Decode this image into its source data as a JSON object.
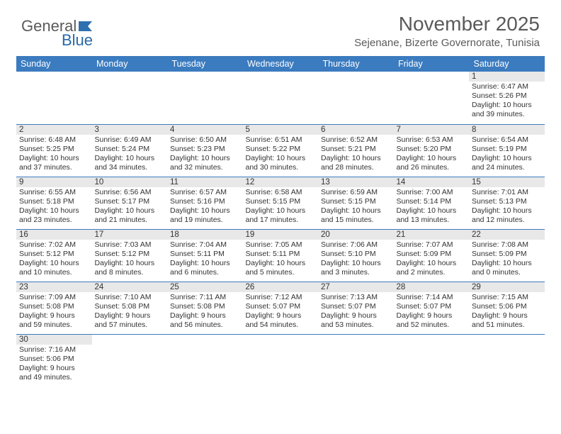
{
  "logo": {
    "text1": "General",
    "text2": "Blue"
  },
  "title": "November 2025",
  "location": "Sejenane, Bizerte Governorate, Tunisia",
  "colors": {
    "header_bg": "#3b7bbf",
    "header_fg": "#ffffff",
    "daynum_bg": "#e8e8e8",
    "rule": "#3b7bbf",
    "logo_gray": "#5a5a5a",
    "logo_blue": "#2868a8"
  },
  "day_headers": [
    "Sunday",
    "Monday",
    "Tuesday",
    "Wednesday",
    "Thursday",
    "Friday",
    "Saturday"
  ],
  "weeks": [
    [
      null,
      null,
      null,
      null,
      null,
      null,
      {
        "n": "1",
        "sr": "Sunrise: 6:47 AM",
        "ss": "Sunset: 5:26 PM",
        "dl1": "Daylight: 10 hours",
        "dl2": "and 39 minutes."
      }
    ],
    [
      {
        "n": "2",
        "sr": "Sunrise: 6:48 AM",
        "ss": "Sunset: 5:25 PM",
        "dl1": "Daylight: 10 hours",
        "dl2": "and 37 minutes."
      },
      {
        "n": "3",
        "sr": "Sunrise: 6:49 AM",
        "ss": "Sunset: 5:24 PM",
        "dl1": "Daylight: 10 hours",
        "dl2": "and 34 minutes."
      },
      {
        "n": "4",
        "sr": "Sunrise: 6:50 AM",
        "ss": "Sunset: 5:23 PM",
        "dl1": "Daylight: 10 hours",
        "dl2": "and 32 minutes."
      },
      {
        "n": "5",
        "sr": "Sunrise: 6:51 AM",
        "ss": "Sunset: 5:22 PM",
        "dl1": "Daylight: 10 hours",
        "dl2": "and 30 minutes."
      },
      {
        "n": "6",
        "sr": "Sunrise: 6:52 AM",
        "ss": "Sunset: 5:21 PM",
        "dl1": "Daylight: 10 hours",
        "dl2": "and 28 minutes."
      },
      {
        "n": "7",
        "sr": "Sunrise: 6:53 AM",
        "ss": "Sunset: 5:20 PM",
        "dl1": "Daylight: 10 hours",
        "dl2": "and 26 minutes."
      },
      {
        "n": "8",
        "sr": "Sunrise: 6:54 AM",
        "ss": "Sunset: 5:19 PM",
        "dl1": "Daylight: 10 hours",
        "dl2": "and 24 minutes."
      }
    ],
    [
      {
        "n": "9",
        "sr": "Sunrise: 6:55 AM",
        "ss": "Sunset: 5:18 PM",
        "dl1": "Daylight: 10 hours",
        "dl2": "and 23 minutes."
      },
      {
        "n": "10",
        "sr": "Sunrise: 6:56 AM",
        "ss": "Sunset: 5:17 PM",
        "dl1": "Daylight: 10 hours",
        "dl2": "and 21 minutes."
      },
      {
        "n": "11",
        "sr": "Sunrise: 6:57 AM",
        "ss": "Sunset: 5:16 PM",
        "dl1": "Daylight: 10 hours",
        "dl2": "and 19 minutes."
      },
      {
        "n": "12",
        "sr": "Sunrise: 6:58 AM",
        "ss": "Sunset: 5:15 PM",
        "dl1": "Daylight: 10 hours",
        "dl2": "and 17 minutes."
      },
      {
        "n": "13",
        "sr": "Sunrise: 6:59 AM",
        "ss": "Sunset: 5:15 PM",
        "dl1": "Daylight: 10 hours",
        "dl2": "and 15 minutes."
      },
      {
        "n": "14",
        "sr": "Sunrise: 7:00 AM",
        "ss": "Sunset: 5:14 PM",
        "dl1": "Daylight: 10 hours",
        "dl2": "and 13 minutes."
      },
      {
        "n": "15",
        "sr": "Sunrise: 7:01 AM",
        "ss": "Sunset: 5:13 PM",
        "dl1": "Daylight: 10 hours",
        "dl2": "and 12 minutes."
      }
    ],
    [
      {
        "n": "16",
        "sr": "Sunrise: 7:02 AM",
        "ss": "Sunset: 5:12 PM",
        "dl1": "Daylight: 10 hours",
        "dl2": "and 10 minutes."
      },
      {
        "n": "17",
        "sr": "Sunrise: 7:03 AM",
        "ss": "Sunset: 5:12 PM",
        "dl1": "Daylight: 10 hours",
        "dl2": "and 8 minutes."
      },
      {
        "n": "18",
        "sr": "Sunrise: 7:04 AM",
        "ss": "Sunset: 5:11 PM",
        "dl1": "Daylight: 10 hours",
        "dl2": "and 6 minutes."
      },
      {
        "n": "19",
        "sr": "Sunrise: 7:05 AM",
        "ss": "Sunset: 5:11 PM",
        "dl1": "Daylight: 10 hours",
        "dl2": "and 5 minutes."
      },
      {
        "n": "20",
        "sr": "Sunrise: 7:06 AM",
        "ss": "Sunset: 5:10 PM",
        "dl1": "Daylight: 10 hours",
        "dl2": "and 3 minutes."
      },
      {
        "n": "21",
        "sr": "Sunrise: 7:07 AM",
        "ss": "Sunset: 5:09 PM",
        "dl1": "Daylight: 10 hours",
        "dl2": "and 2 minutes."
      },
      {
        "n": "22",
        "sr": "Sunrise: 7:08 AM",
        "ss": "Sunset: 5:09 PM",
        "dl1": "Daylight: 10 hours",
        "dl2": "and 0 minutes."
      }
    ],
    [
      {
        "n": "23",
        "sr": "Sunrise: 7:09 AM",
        "ss": "Sunset: 5:08 PM",
        "dl1": "Daylight: 9 hours",
        "dl2": "and 59 minutes."
      },
      {
        "n": "24",
        "sr": "Sunrise: 7:10 AM",
        "ss": "Sunset: 5:08 PM",
        "dl1": "Daylight: 9 hours",
        "dl2": "and 57 minutes."
      },
      {
        "n": "25",
        "sr": "Sunrise: 7:11 AM",
        "ss": "Sunset: 5:08 PM",
        "dl1": "Daylight: 9 hours",
        "dl2": "and 56 minutes."
      },
      {
        "n": "26",
        "sr": "Sunrise: 7:12 AM",
        "ss": "Sunset: 5:07 PM",
        "dl1": "Daylight: 9 hours",
        "dl2": "and 54 minutes."
      },
      {
        "n": "27",
        "sr": "Sunrise: 7:13 AM",
        "ss": "Sunset: 5:07 PM",
        "dl1": "Daylight: 9 hours",
        "dl2": "and 53 minutes."
      },
      {
        "n": "28",
        "sr": "Sunrise: 7:14 AM",
        "ss": "Sunset: 5:07 PM",
        "dl1": "Daylight: 9 hours",
        "dl2": "and 52 minutes."
      },
      {
        "n": "29",
        "sr": "Sunrise: 7:15 AM",
        "ss": "Sunset: 5:06 PM",
        "dl1": "Daylight: 9 hours",
        "dl2": "and 51 minutes."
      }
    ],
    [
      {
        "n": "30",
        "sr": "Sunrise: 7:16 AM",
        "ss": "Sunset: 5:06 PM",
        "dl1": "Daylight: 9 hours",
        "dl2": "and 49 minutes."
      },
      null,
      null,
      null,
      null,
      null,
      null
    ]
  ]
}
